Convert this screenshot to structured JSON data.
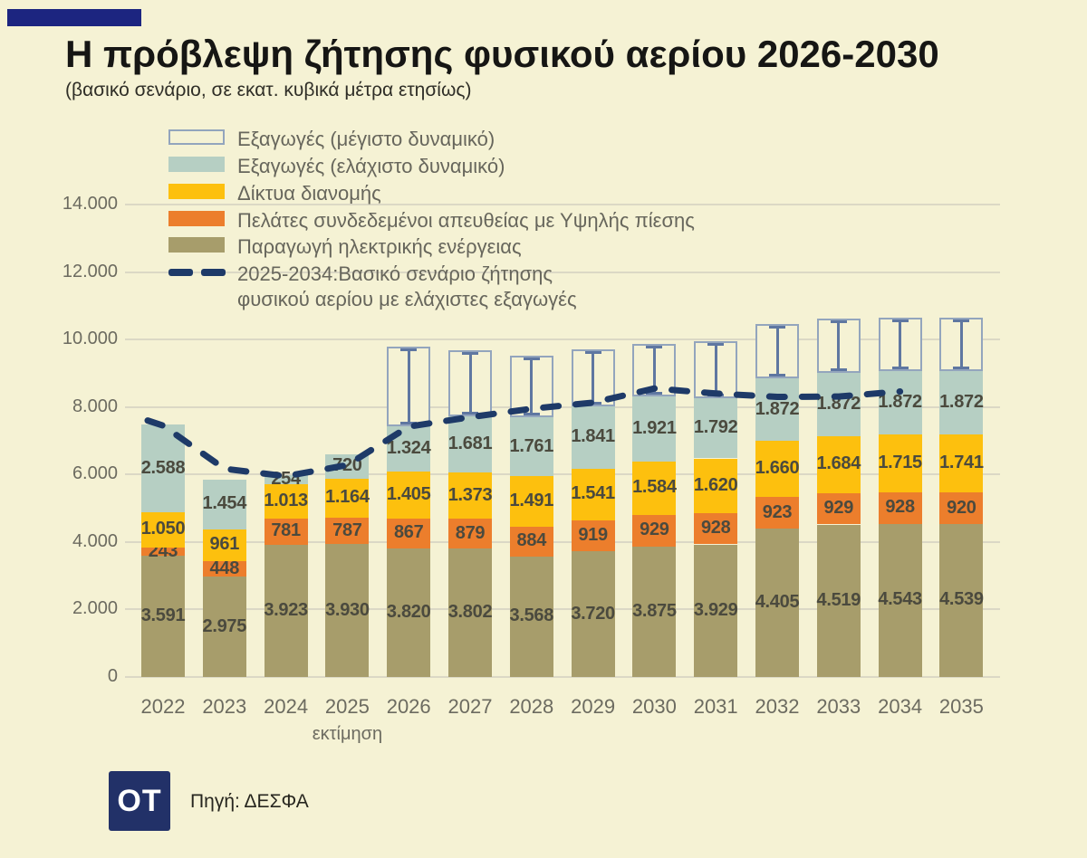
{
  "title": "Η πρόβλεψη ζήτησης φυσικού αερίου 2026-2030",
  "subtitle": "(βασικό σενάριο, σε εκατ. κυβικά μέτρα ετησίως)",
  "source": {
    "logo_text": "OT",
    "label": "Πηγή: ΔΕΣΦΑ"
  },
  "colors": {
    "background": "#f5f2d4",
    "accent_bar": "#1c2580",
    "navy_dash": "#1e3a68",
    "grid": "#dbd8c5",
    "axis_text": "#6c6b60",
    "label_text": "#4b4a3e",
    "title_text": "#161614",
    "subtitle_text": "#2f2e27",
    "legend_text": "#67665c",
    "outline_border": "#93a5bd",
    "outline_whisker": "#5f77a1",
    "logo_bg": "#223168",
    "source_text": "#27261f",
    "series": {
      "power": "#a79d6b",
      "hp_customers": "#ec7e2c",
      "distribution": "#fdc00e",
      "exports_min": "#b6cfc3"
    }
  },
  "legend": [
    {
      "type": "outline",
      "color_key": "outline_border",
      "label": "Εξαγωγές (μέγιστο δυναμικό)"
    },
    {
      "type": "fill",
      "color_key": "exports_min",
      "label": "Εξαγωγές (ελάχιστο δυναμικό)"
    },
    {
      "type": "fill",
      "color_key": "distribution",
      "label": "Δίκτυα διανομής"
    },
    {
      "type": "fill",
      "color_key": "hp_customers",
      "label": "Πελάτες συνδεδεμένοι απευθείας με Υψηλής πίεσης"
    },
    {
      "type": "fill",
      "color_key": "power",
      "label": "Παραγωγή ηλεκτρικής ενέργειας"
    },
    {
      "type": "dash",
      "color_key": "navy_dash",
      "label": "2025-2034:Βασικό σενάριο ζήτησης",
      "label_line2": "φυσικού αερίου με ελάχιστες εξαγωγές"
    }
  ],
  "chart_data": {
    "type": "bar",
    "stacked": true,
    "grid": true,
    "ylim": [
      0,
      14000
    ],
    "ytick_step": 2000,
    "categories": [
      "2022",
      "2023",
      "2024",
      "2025",
      "2026",
      "2027",
      "2028",
      "2029",
      "2030",
      "2031",
      "2032",
      "2033",
      "2034",
      "2035"
    ],
    "x_note": {
      "category": "2025",
      "label": "εκτίμηση"
    },
    "series": [
      {
        "id": "power",
        "name": "Παραγωγή ηλεκτρικής ενέργειας",
        "values": [
          3591,
          2975,
          3923,
          3930,
          3820,
          3802,
          3568,
          3720,
          3875,
          3929,
          4405,
          4519,
          4543,
          4539
        ]
      },
      {
        "id": "hp_customers",
        "name": "Πελάτες συνδεδεμένοι απευθείας με Υψηλής πίεσης",
        "values": [
          243,
          448,
          781,
          787,
          867,
          879,
          884,
          919,
          929,
          928,
          923,
          929,
          928,
          920
        ]
      },
      {
        "id": "distribution",
        "name": "Δίκτυα διανομής",
        "values": [
          1050,
          961,
          1013,
          1164,
          1405,
          1373,
          1491,
          1541,
          1584,
          1620,
          1660,
          1684,
          1715,
          1741
        ]
      },
      {
        "id": "exports_min",
        "name": "Εξαγωγές (ελάχιστο δυναμικό)",
        "values": [
          2588,
          1454,
          254,
          720,
          1324,
          1681,
          1761,
          1841,
          1921,
          1792,
          1872,
          1872,
          1872,
          1872
        ]
      }
    ],
    "exports_max_outline": {
      "name": "Εξαγωγές (μέγιστο δυναμικό)",
      "totals": [
        null,
        null,
        null,
        null,
        9790,
        9670,
        9510,
        9700,
        9860,
        9950,
        10450,
        10620,
        10660,
        10660
      ]
    },
    "dashed_line": {
      "name": "2025-2034:Βασικό σενάριο ζήτησης φυσικού αερίου με ελάχιστες εξαγωγές",
      "categories": [
        "2022",
        "2023",
        "2024",
        "2025",
        "2026",
        "2027",
        "2028",
        "2029",
        "2030",
        "2031",
        "2032",
        "2033",
        "2034"
      ],
      "values": [
        7450,
        6170,
        5950,
        6280,
        7420,
        7700,
        7950,
        8130,
        8550,
        8400,
        8300,
        8310,
        8460
      ]
    }
  }
}
